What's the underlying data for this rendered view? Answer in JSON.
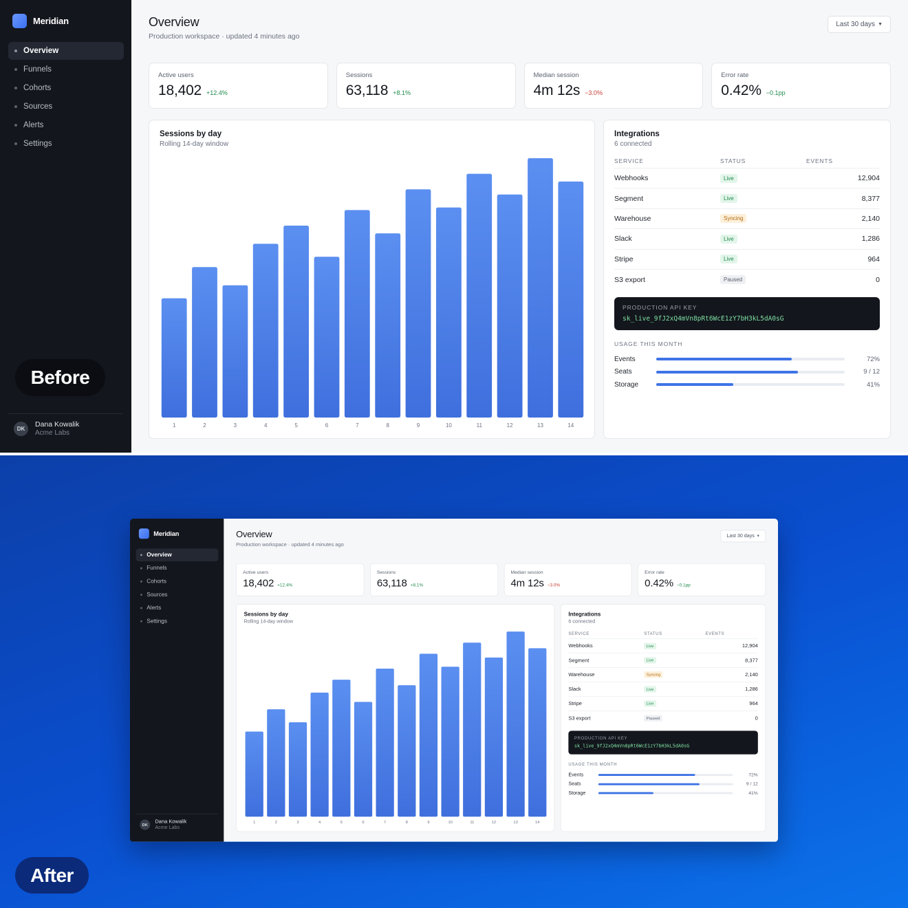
{
  "app": {
    "name": "Meridian"
  },
  "nav": {
    "items": [
      {
        "label": "Overview",
        "active": true
      },
      {
        "label": "Funnels",
        "active": false
      },
      {
        "label": "Cohorts",
        "active": false
      },
      {
        "label": "Sources",
        "active": false
      },
      {
        "label": "Alerts",
        "active": false
      },
      {
        "label": "Settings",
        "active": false
      }
    ]
  },
  "user": {
    "initials": "DK",
    "name": "Dana Kowalik",
    "org": "Acme Labs"
  },
  "header": {
    "title": "Overview",
    "subtitle": "Production workspace · updated 4 minutes ago",
    "range_label": "Last 30 days"
  },
  "kpis": [
    {
      "label": "Active users",
      "value": "18,402",
      "delta": "+12.4%",
      "trend": "up"
    },
    {
      "label": "Sessions",
      "value": "63,118",
      "delta": "+8.1%",
      "trend": "up"
    },
    {
      "label": "Median session",
      "value": "4m 12s",
      "delta": "−3.0%",
      "trend": "down"
    },
    {
      "label": "Error rate",
      "value": "0.42%",
      "delta": "−0.1pp",
      "trend": "up"
    }
  ],
  "chart_card": {
    "title": "Sessions by day",
    "subtitle": "Rolling 14-day window"
  },
  "chart_data": {
    "type": "bar",
    "categories": [
      "1",
      "2",
      "3",
      "4",
      "5",
      "6",
      "7",
      "8",
      "9",
      "10",
      "11",
      "12",
      "13",
      "14"
    ],
    "values": [
      46,
      58,
      51,
      67,
      74,
      62,
      80,
      71,
      88,
      81,
      94,
      86,
      100,
      91
    ],
    "ylim": [
      0,
      100
    ],
    "grid": false,
    "bar_color": "#4a7de9"
  },
  "integrations": {
    "title": "Integrations",
    "subtitle": "6 connected",
    "columns": [
      "SERVICE",
      "STATUS",
      "EVENTS"
    ],
    "rows": [
      {
        "service": "Webhooks",
        "status": "Live",
        "kind": "live",
        "events": "12,904"
      },
      {
        "service": "Segment",
        "status": "Live",
        "kind": "live",
        "events": "8,377"
      },
      {
        "service": "Warehouse",
        "status": "Syncing",
        "kind": "sync",
        "events": "2,140"
      },
      {
        "service": "Slack",
        "status": "Live",
        "kind": "live",
        "events": "1,286"
      },
      {
        "service": "Stripe",
        "status": "Live",
        "kind": "live",
        "events": "964"
      },
      {
        "service": "S3 export",
        "status": "Paused",
        "kind": "paused",
        "events": "0"
      }
    ],
    "api_key_label": "PRODUCTION API KEY",
    "api_key": "sk_live_9fJ2xQ4mVn8pRt6WcE1zY7bH3kL5dA0sG",
    "usage_title": "USAGE THIS MONTH",
    "usage": [
      {
        "label": "Events",
        "value": "72%",
        "fraction": 0.72
      },
      {
        "label": "Seats",
        "value": "9 / 12",
        "fraction": 0.75
      },
      {
        "label": "Storage",
        "value": "41%",
        "fraction": 0.41
      }
    ]
  },
  "labels": {
    "before": "Before",
    "after": "After"
  },
  "colors": {
    "accent": "#3f73e6",
    "sidebar": "#13161c",
    "up": "#1f8a4c",
    "down": "#c53a2f"
  }
}
